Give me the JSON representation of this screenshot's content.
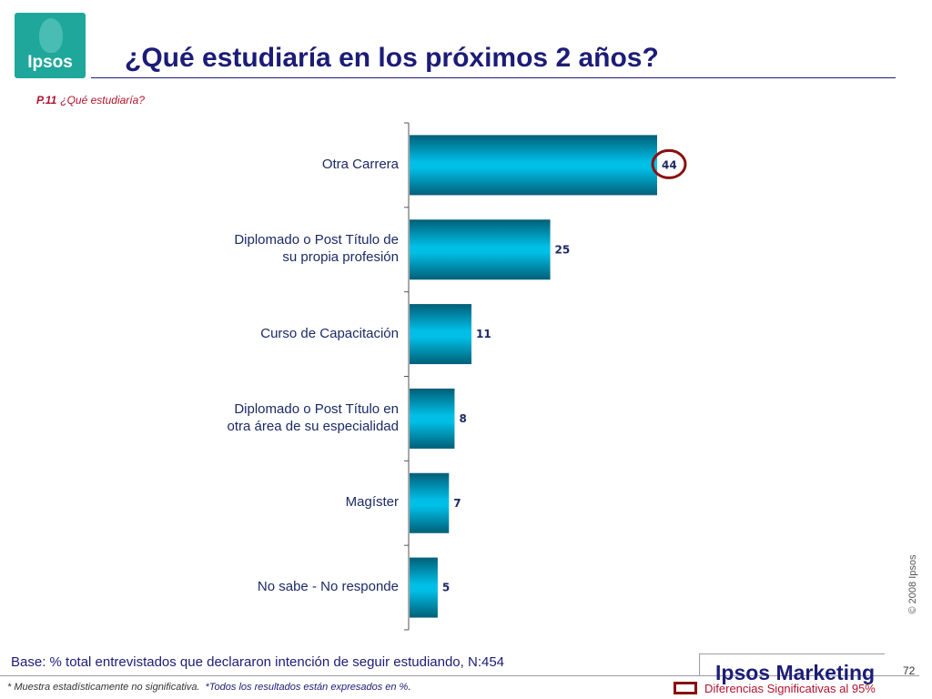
{
  "brand_logo_text": "Ipsos",
  "title": "¿Qué estudiaría en los próximos 2 años?",
  "question": {
    "code": "P.11",
    "text": "¿Qué estudiaría?"
  },
  "chart_data": {
    "type": "bar",
    "orientation": "horizontal",
    "categories": [
      "Otra Carrera",
      "Diplomado o Post Título de su propia profesión",
      "Curso de Capacitación",
      "Diplomado o Post Título en otra área de su especialidad",
      "Magíster",
      "No sabe - No responde"
    ],
    "category_display": [
      [
        "Otra Carrera"
      ],
      [
        "Diplomado o Post Título de",
        "su propia profesión"
      ],
      [
        "Curso de Capacitación"
      ],
      [
        "Diplomado o Post Título en",
        "otra área de su especialidad"
      ],
      [
        "Magíster"
      ],
      [
        "No sabe - No responde"
      ]
    ],
    "values": [
      44,
      25,
      11,
      8,
      7,
      5
    ],
    "value_labels": [
      "44",
      "25",
      "11",
      "8",
      "7",
      "5"
    ],
    "xlim": [
      0,
      44
    ],
    "highlighted_index": 0,
    "bar_color": "#00bfe6",
    "bar_dark_color": "#005f78",
    "highlight_color": "#8a1010",
    "label_color": "#1c2a66"
  },
  "footer": {
    "base": "Base: % total entrevistados que declararon intención de seguir estudiando, N:454",
    "note1": "* Muestra estadísticamente no significativa.",
    "note2": "*Todos los resultados están expresados en %.",
    "brand": "Ipsos Marketing",
    "page_number": "72",
    "significance_legend": "Diferencias Significativas al 95%",
    "copyright": "© 2008 Ipsos"
  }
}
